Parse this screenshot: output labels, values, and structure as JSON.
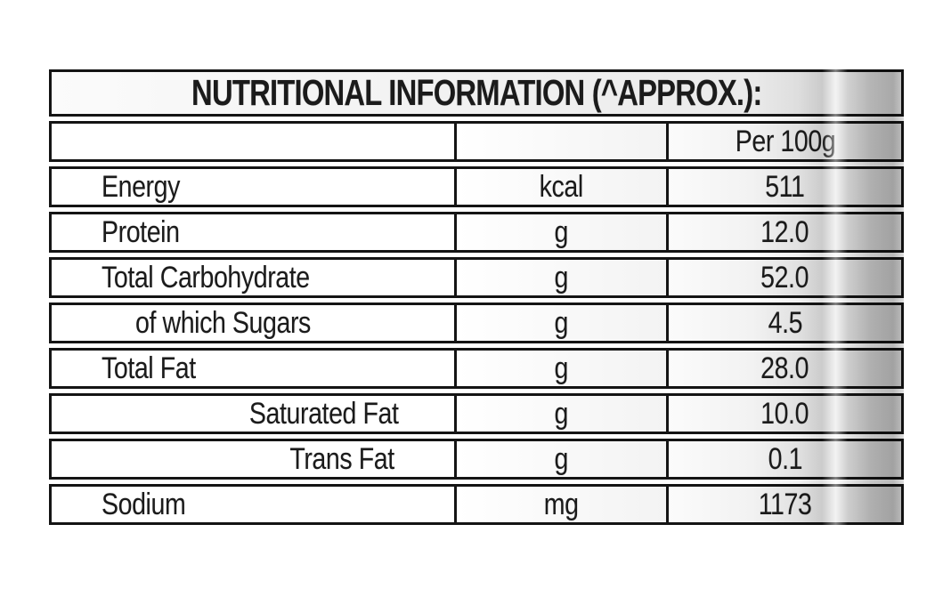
{
  "label": {
    "title": "NUTRITIONAL INFORMATION (^APPROX.):",
    "column_header": "Per 100g",
    "rows": [
      {
        "nutrient": "Energy",
        "unit": "kcal",
        "value": "511",
        "indent": 0
      },
      {
        "nutrient": "Protein",
        "unit": "g",
        "value": "12.0",
        "indent": 0
      },
      {
        "nutrient": "Total Carbohydrate",
        "unit": "g",
        "value": "52.0",
        "indent": 0
      },
      {
        "nutrient": "of which Sugars",
        "unit": "g",
        "value": "4.5",
        "indent": 1
      },
      {
        "nutrient": "Total Fat",
        "unit": "g",
        "value": "28.0",
        "indent": 0
      },
      {
        "nutrient": "Saturated Fat",
        "unit": "g",
        "value": "10.0",
        "indent": 2
      },
      {
        "nutrient": "Trans Fat",
        "unit": "g",
        "value": "0.1",
        "indent": 3
      },
      {
        "nutrient": "Sodium",
        "unit": "mg",
        "value": "1173",
        "indent": 0
      }
    ],
    "colors": {
      "border": "#141414",
      "text": "#1b1b1b",
      "background": "#ffffff",
      "shade_gray": "#b5b5b5"
    }
  }
}
